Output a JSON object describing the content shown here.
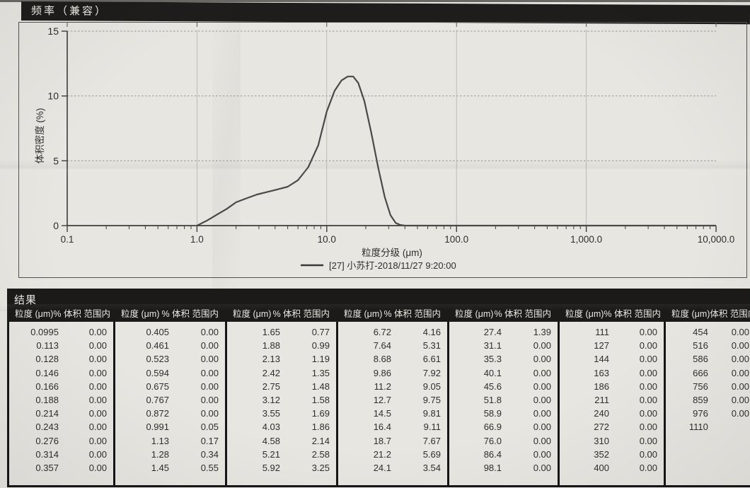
{
  "header": {
    "title": "频率（兼容）"
  },
  "chart": {
    "y_axis": {
      "title": "体积密度 (%)",
      "ticks": [
        0,
        5,
        10,
        15
      ]
    },
    "x_axis": {
      "title": "粒度分级 (μm)",
      "tick_labels": [
        "0.1",
        "1.0",
        "10.0",
        "100.0",
        "1,000.0",
        "10,000.0"
      ],
      "tick_values": [
        0.1,
        1,
        10,
        100,
        1000,
        10000
      ]
    },
    "legend_label": "[27] 小苏打-2018/11/27 9:20:00"
  },
  "chart_data": {
    "type": "line",
    "title": "频率（兼容）",
    "xlabel": "粒度分级 (μm)",
    "ylabel": "体积密度 (%)",
    "x_scale": "log",
    "xlim": [
      0.1,
      10000
    ],
    "ylim": [
      0,
      15
    ],
    "grid": "dashed horizontal at 5/10/15, light vertical at decades",
    "legend_position": "below x-axis, centered",
    "legend": [
      "[27] 小苏打-2018/11/27 9:20:00"
    ],
    "series": [
      {
        "name": "[27] 小苏打-2018/11/27 9:20:00",
        "x": [
          1.0,
          1.2,
          1.4,
          1.7,
          2.0,
          2.4,
          2.9,
          3.5,
          4.2,
          5.0,
          6.0,
          7.2,
          8.6,
          10.0,
          11.5,
          13.0,
          14.5,
          16.0,
          17.5,
          19.5,
          22.0,
          25.0,
          28.0,
          31.0,
          34.0,
          37.0,
          40.0,
          10000
        ],
        "y": [
          0.0,
          0.4,
          0.8,
          1.3,
          1.8,
          2.1,
          2.4,
          2.6,
          2.8,
          3.0,
          3.5,
          4.5,
          6.2,
          8.8,
          10.4,
          11.2,
          11.5,
          11.5,
          11.0,
          9.6,
          7.2,
          4.4,
          2.2,
          0.8,
          0.2,
          0.05,
          0.0,
          0.0
        ]
      }
    ]
  },
  "results": {
    "title": "结果",
    "col_headers": [
      {
        "size": "粒度 (μm)",
        "pct": "% 体积 范围内"
      },
      {
        "size": "粒度 (μm)",
        "pct": "% 体积 范围内"
      },
      {
        "size": "粒度 (μm)",
        "pct": "% 体积 范围内"
      },
      {
        "size": "粒度 (μm)",
        "pct": "% 体积 范围内"
      },
      {
        "size": "粒度 (μm)",
        "pct": "% 体积 范围内"
      },
      {
        "size": "粒度 (μm)",
        "pct": "% 体积 范围内"
      },
      {
        "size": "粒度 (μm)",
        "pct": "体积 范围内"
      }
    ],
    "groups": [
      {
        "rows": [
          [
            "0.0995",
            "0.00"
          ],
          [
            "0.113",
            "0.00"
          ],
          [
            "0.128",
            "0.00"
          ],
          [
            "0.146",
            "0.00"
          ],
          [
            "0.166",
            "0.00"
          ],
          [
            "0.188",
            "0.00"
          ],
          [
            "0.214",
            "0.00"
          ],
          [
            "0.243",
            "0.00"
          ],
          [
            "0.276",
            "0.00"
          ],
          [
            "0.314",
            "0.00"
          ],
          [
            "0.357",
            "0.00"
          ]
        ]
      },
      {
        "rows": [
          [
            "0.405",
            "0.00"
          ],
          [
            "0.461",
            "0.00"
          ],
          [
            "0.523",
            "0.00"
          ],
          [
            "0.594",
            "0.00"
          ],
          [
            "0.675",
            "0.00"
          ],
          [
            "0.767",
            "0.00"
          ],
          [
            "0.872",
            "0.00"
          ],
          [
            "0.991",
            "0.05"
          ],
          [
            "1.13",
            "0.17"
          ],
          [
            "1.28",
            "0.34"
          ],
          [
            "1.45",
            "0.55"
          ]
        ]
      },
      {
        "rows": [
          [
            "1.65",
            "0.77"
          ],
          [
            "1.88",
            "0.99"
          ],
          [
            "2.13",
            "1.19"
          ],
          [
            "2.42",
            "1.35"
          ],
          [
            "2.75",
            "1.48"
          ],
          [
            "3.12",
            "1.58"
          ],
          [
            "3.55",
            "1.69"
          ],
          [
            "4.03",
            "1.86"
          ],
          [
            "4.58",
            "2.14"
          ],
          [
            "5.21",
            "2.58"
          ],
          [
            "5.92",
            "3.25"
          ]
        ]
      },
      {
        "rows": [
          [
            "6.72",
            "4.16"
          ],
          [
            "7.64",
            "5.31"
          ],
          [
            "8.68",
            "6.61"
          ],
          [
            "9.86",
            "7.92"
          ],
          [
            "11.2",
            "9.05"
          ],
          [
            "12.7",
            "9.75"
          ],
          [
            "14.5",
            "9.81"
          ],
          [
            "16.4",
            "9.11"
          ],
          [
            "18.7",
            "7.67"
          ],
          [
            "21.2",
            "5.69"
          ],
          [
            "24.1",
            "3.54"
          ]
        ]
      },
      {
        "rows": [
          [
            "27.4",
            "1.39"
          ],
          [
            "31.1",
            "0.00"
          ],
          [
            "35.3",
            "0.00"
          ],
          [
            "40.1",
            "0.00"
          ],
          [
            "45.6",
            "0.00"
          ],
          [
            "51.8",
            "0.00"
          ],
          [
            "58.9",
            "0.00"
          ],
          [
            "66.9",
            "0.00"
          ],
          [
            "76.0",
            "0.00"
          ],
          [
            "86.4",
            "0.00"
          ],
          [
            "98.1",
            "0.00"
          ]
        ]
      },
      {
        "rows": [
          [
            "111",
            "0.00"
          ],
          [
            "127",
            "0.00"
          ],
          [
            "144",
            "0.00"
          ],
          [
            "163",
            "0.00"
          ],
          [
            "186",
            "0.00"
          ],
          [
            "211",
            "0.00"
          ],
          [
            "240",
            "0.00"
          ],
          [
            "272",
            "0.00"
          ],
          [
            "310",
            "0.00"
          ],
          [
            "352",
            "0.00"
          ],
          [
            "400",
            "0.00"
          ]
        ]
      },
      {
        "rows": [
          [
            "454",
            "0.00"
          ],
          [
            "516",
            "0.00"
          ],
          [
            "586",
            "0.00"
          ],
          [
            "666",
            "0.00"
          ],
          [
            "756",
            "0.00"
          ],
          [
            "859",
            "0.00"
          ],
          [
            "976",
            "0.00"
          ],
          [
            "1110",
            ""
          ],
          [
            "",
            ""
          ],
          [
            "",
            ""
          ],
          [
            "",
            ""
          ]
        ]
      }
    ]
  }
}
